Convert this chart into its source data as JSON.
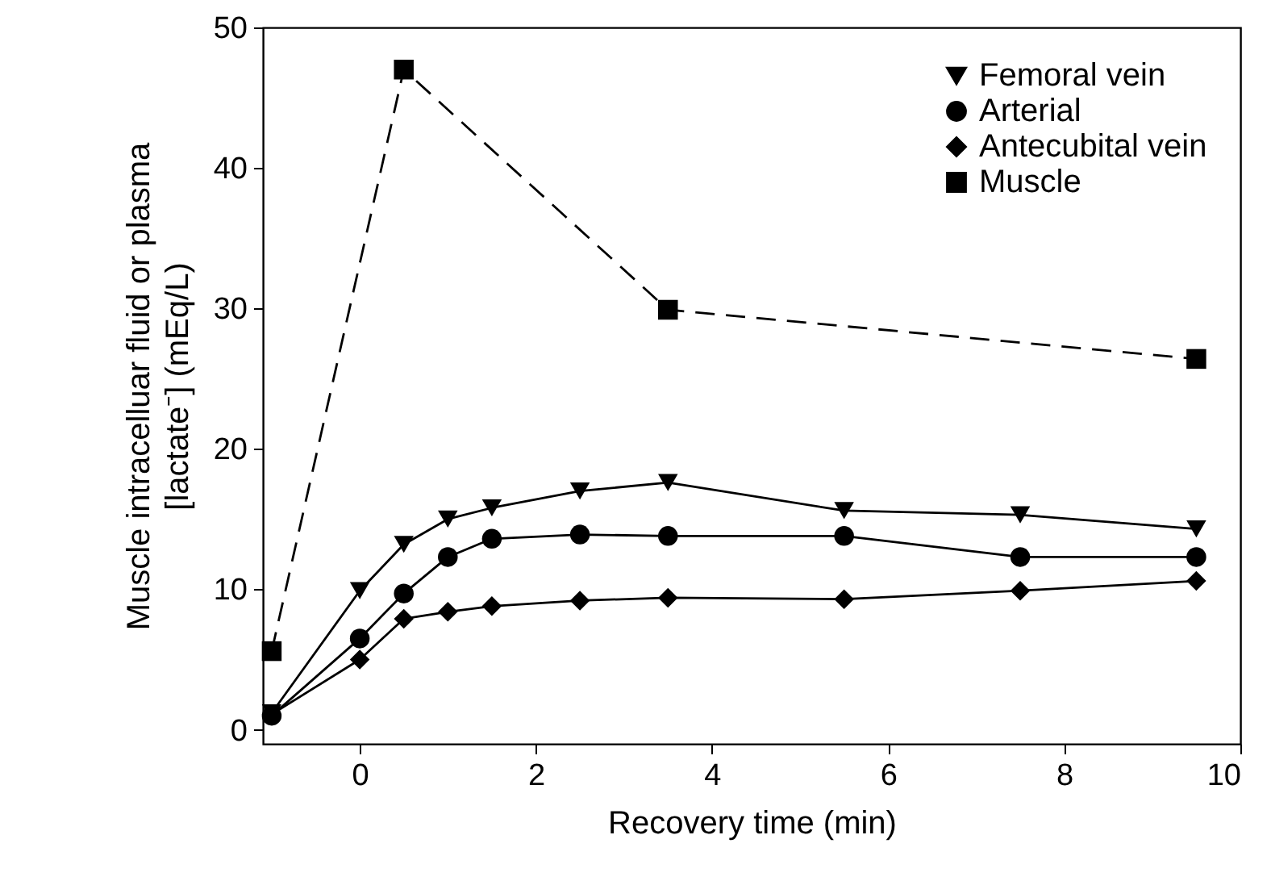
{
  "chart_data": {
    "type": "line",
    "xlabel": "Recovery time (min)",
    "ylabel": "Muscle intracelluar fluid or plasma\n[lactate⁻] (mEq/L)",
    "xlim": [
      -1.1,
      10
    ],
    "xticks": [
      0,
      2,
      4,
      6,
      8,
      10
    ],
    "ylim": [
      -1,
      50
    ],
    "yticks": [
      0,
      10,
      20,
      30,
      40,
      50
    ],
    "grid": false,
    "legend": "top right",
    "x": [
      -1,
      0,
      0.5,
      1,
      1.5,
      2.5,
      3.5,
      5.5,
      7.5,
      9.5
    ],
    "series": [
      {
        "name": "Femoral vein",
        "color": "#000000",
        "marker": "triangle",
        "line_style": "solid",
        "values": [
          1.2,
          9.9,
          13.2,
          15.0,
          15.8,
          17.0,
          17.6,
          15.6,
          15.3,
          14.3
        ]
      },
      {
        "name": "Arterial",
        "color": "#000000",
        "marker": "circle",
        "line_style": "solid",
        "values": [
          1.0,
          6.5,
          9.7,
          12.3,
          13.6,
          13.9,
          13.8,
          13.8,
          12.3,
          12.3
        ]
      },
      {
        "name": "Antecubital vein",
        "color": "#000000",
        "marker": "diamond",
        "line_style": "solid",
        "values": [
          1.1,
          5.0,
          7.9,
          8.4,
          8.8,
          9.2,
          9.4,
          9.3,
          9.9,
          10.6
        ]
      },
      {
        "name": "Muscle",
        "color": "#000000",
        "marker": "square",
        "line_style": "dashed",
        "x": [
          -1,
          0.5,
          3.5,
          9.5
        ],
        "values": [
          5.6,
          47.0,
          29.9,
          26.4
        ]
      }
    ]
  }
}
